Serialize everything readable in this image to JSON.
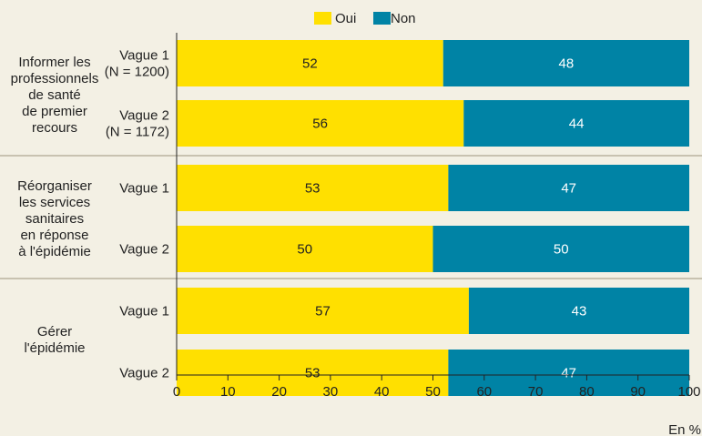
{
  "chart_data": {
    "type": "bar",
    "orientation": "horizontal",
    "stacked": true,
    "legend": {
      "placement": "top-center",
      "items": [
        {
          "name": "Oui",
          "color": "#ffe000"
        },
        {
          "name": "Non",
          "color": "#0083a5"
        }
      ]
    },
    "groups": [
      {
        "label": [
          "Informer les",
          "professionnels",
          "de santé",
          "de premier",
          "recours"
        ],
        "bars": [
          {
            "label": [
              "Vague 1",
              "(N = 1200)"
            ],
            "oui": 52,
            "non": 48
          },
          {
            "label": [
              "Vague 2",
              "(N = 1172)"
            ],
            "oui": 56,
            "non": 44
          }
        ]
      },
      {
        "label": [
          "Réorganiser",
          "les services",
          "sanitaires",
          "en réponse",
          "à l'épidémie"
        ],
        "bars": [
          {
            "label": [
              "Vague 1"
            ],
            "oui": 53,
            "non": 47
          },
          {
            "label": [
              "Vague 2"
            ],
            "oui": 50,
            "non": 50
          }
        ]
      },
      {
        "label": [
          "Gérer",
          "l'épidémie"
        ],
        "bars": [
          {
            "label": [
              "Vague 1"
            ],
            "oui": 57,
            "non": 43
          },
          {
            "label": [
              "Vague 2"
            ],
            "oui": 53,
            "non": 47
          }
        ]
      }
    ],
    "xlim": [
      0,
      100
    ],
    "xticks": [
      0,
      10,
      20,
      30,
      40,
      50,
      60,
      70,
      80,
      90,
      100
    ],
    "xunit": "En %",
    "grid": false
  }
}
